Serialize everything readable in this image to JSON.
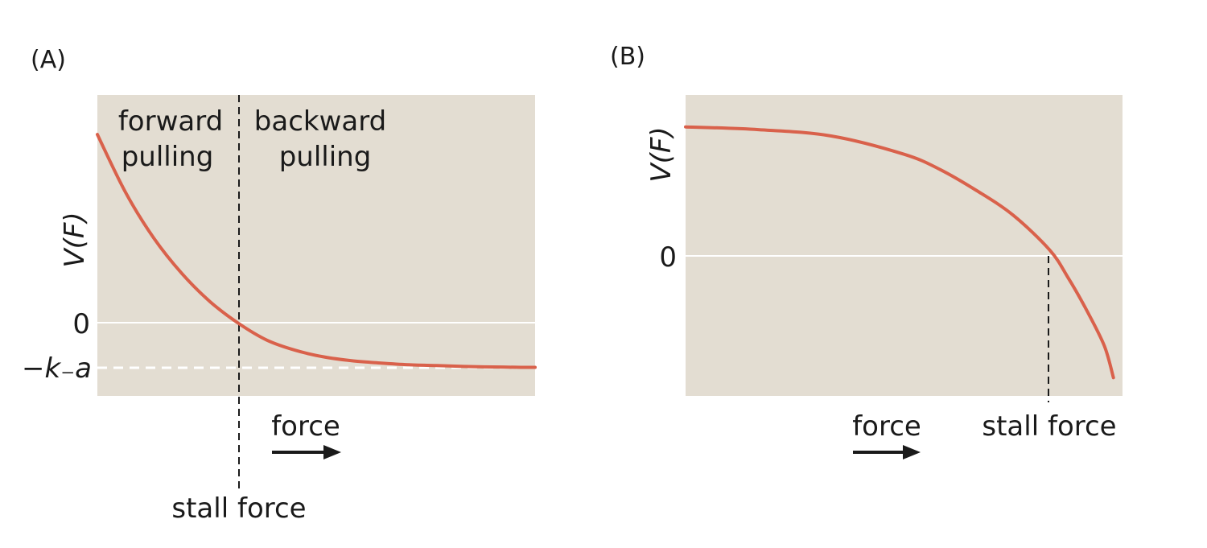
{
  "colors": {
    "plot_background": "#e3ddd2",
    "curve": "#d9614b",
    "zero_line": "#ffffff",
    "asymptote": "#ffffff",
    "dashed_marker": "#1a1a1a",
    "arrow": "#1a1a1a"
  },
  "chart_data": [
    {
      "type": "line",
      "panel_label": "(A)",
      "ylabel": "V(F)",
      "xlabel": "force",
      "x_arrow": "right",
      "grid": false,
      "region_labels": [
        {
          "lines": [
            "forward",
            "pulling"
          ]
        },
        {
          "lines": [
            "backward",
            "pulling"
          ]
        }
      ],
      "y_ticks": [
        {
          "value": 0,
          "label": "0"
        },
        {
          "value": -1,
          "label": "−k₋a"
        }
      ],
      "vertical_marker": {
        "x": 0,
        "label": "stall force"
      },
      "asymptote": {
        "y": -1,
        "style": "dashed"
      },
      "xlim": [
        -1,
        2.1
      ],
      "ylim": [
        -1.65,
        5.2
      ],
      "series": [
        {
          "x": [
            -1,
            -0.8,
            -0.6,
            -0.4,
            -0.2,
            0,
            0.2,
            0.4,
            0.6,
            0.8,
            1.0,
            1.2,
            1.4,
            1.6,
            1.8,
            2.0,
            2.1
          ],
          "values": [
            4.3,
            2.98,
            1.94,
            1.13,
            0.49,
            0,
            -0.38,
            -0.61,
            -0.76,
            -0.85,
            -0.9,
            -0.94,
            -0.96,
            -0.98,
            -0.99,
            -1.0,
            -1.0
          ]
        }
      ]
    },
    {
      "type": "line",
      "panel_label": "(B)",
      "ylabel": "V(F)",
      "xlabel": "force",
      "x_arrow": "right",
      "grid": false,
      "y_ticks": [
        {
          "value": 0,
          "label": "0"
        }
      ],
      "vertical_marker": {
        "x": 0,
        "label": "stall force"
      },
      "xlim": [
        -1,
        0.2
      ],
      "ylim": [
        -1.6,
        1.7
      ],
      "series": [
        {
          "x": [
            -1,
            -0.8,
            -0.6,
            -0.4,
            -0.3,
            -0.2,
            -0.1,
            0,
            0.05,
            0.1,
            0.15,
            0.175
          ],
          "values": [
            1.35,
            1.32,
            1.25,
            1.05,
            0.88,
            0.65,
            0.38,
            0,
            -0.3,
            -0.65,
            -1.05,
            -1.4
          ]
        }
      ]
    }
  ]
}
